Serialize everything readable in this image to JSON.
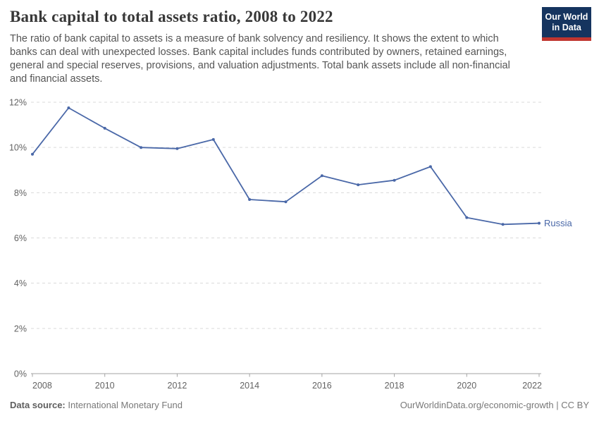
{
  "header": {
    "title": "Bank capital to total assets ratio, 2008 to 2022",
    "subtitle": "The ratio of bank capital to assets is a measure of bank solvency and resiliency. It shows the extent to which banks can deal with unexpected losses. Bank capital includes funds contributed by owners, retained earnings, general and special reserves, provisions, and valuation adjustments. Total bank assets include all non-financial and financial assets.",
    "logo": {
      "line1": "Our World",
      "line2": "in Data",
      "bg_color": "#15345f",
      "accent_color": "#c0352f"
    }
  },
  "chart_data": {
    "type": "line",
    "title": "Bank capital to total assets ratio, 2008 to 2022",
    "x": [
      2008,
      2009,
      2010,
      2011,
      2012,
      2013,
      2014,
      2015,
      2016,
      2017,
      2018,
      2019,
      2020,
      2021,
      2022
    ],
    "series": [
      {
        "name": "Russia",
        "color": "#4a68a8",
        "values": [
          9.7,
          11.75,
          10.85,
          10.0,
          9.95,
          10.35,
          7.7,
          7.6,
          8.75,
          8.35,
          8.55,
          9.15,
          6.9,
          6.6,
          6.65
        ]
      }
    ],
    "xlabel": "",
    "ylabel": "",
    "ylim": [
      0,
      12
    ],
    "yticks": [
      0,
      2,
      4,
      6,
      8,
      10,
      12
    ],
    "ytick_format": "{v}%",
    "xticks": [
      2008,
      2010,
      2012,
      2014,
      2016,
      2018,
      2020,
      2022
    ],
    "grid": "horizontal-dashed",
    "legend_position": "end-of-line-label"
  },
  "footer": {
    "datasource_label": "Data source:",
    "datasource_value": " International Monetary Fund",
    "url": "OurWorldinData.org/economic-growth",
    "separator": " | ",
    "license": "CC BY"
  }
}
